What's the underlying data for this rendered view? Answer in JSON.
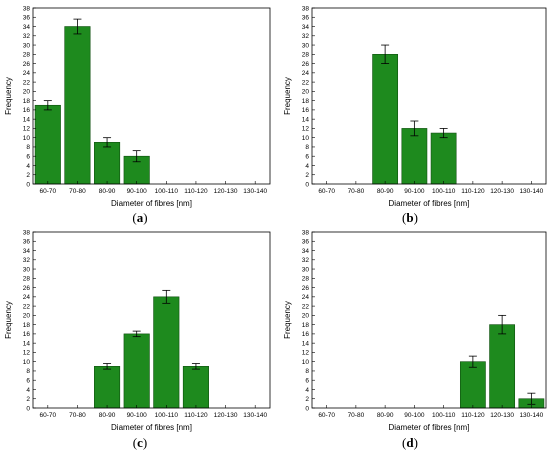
{
  "colors": {
    "bar_fill": "#1e8a1e",
    "bar_stroke": "#0f4f0f",
    "axis": "#000000",
    "error_bar": "#000000"
  },
  "chart_data": [
    {
      "type": "bar",
      "panel_label": "(a)",
      "categories": [
        "60-70",
        "70-80",
        "80-90",
        "90-100",
        "100-110",
        "110-120",
        "120-130",
        "130-140"
      ],
      "values": [
        17,
        34,
        9,
        6,
        0,
        0,
        0,
        0
      ],
      "errors": [
        1,
        1.6,
        1,
        1.2,
        0,
        0,
        0,
        0
      ],
      "xlabel": "Diameter of fibres [nm]",
      "ylabel": "Frequency",
      "ylim": [
        0,
        38
      ],
      "yticks": [
        0,
        2,
        4,
        6,
        8,
        10,
        12,
        14,
        16,
        18,
        20,
        22,
        24,
        26,
        28,
        30,
        32,
        34,
        36,
        38
      ],
      "grid": false
    },
    {
      "type": "bar",
      "panel_label": "(b)",
      "categories": [
        "60-70",
        "70-80",
        "80-90",
        "90-100",
        "100-110",
        "110-120",
        "120-130",
        "130-140"
      ],
      "values": [
        0,
        0,
        28,
        12,
        11,
        0,
        0,
        0
      ],
      "errors": [
        0,
        0,
        2,
        1.6,
        1,
        0,
        0,
        0
      ],
      "xlabel": "Diameter of fibres [nm]",
      "ylabel": "Frequency",
      "ylim": [
        0,
        38
      ],
      "yticks": [
        0,
        2,
        4,
        6,
        8,
        10,
        12,
        14,
        16,
        18,
        20,
        22,
        24,
        26,
        28,
        30,
        32,
        34,
        36,
        38
      ],
      "grid": false
    },
    {
      "type": "bar",
      "panel_label": "(c)",
      "categories": [
        "60-70",
        "70-80",
        "80-90",
        "90-100",
        "100-110",
        "110-120",
        "120-130",
        "130-140"
      ],
      "values": [
        0,
        0,
        9,
        16,
        24,
        9,
        0,
        0
      ],
      "errors": [
        0,
        0,
        0.6,
        0.6,
        1.4,
        0.6,
        0,
        0
      ],
      "xlabel": "Diameter of fibres [nm]",
      "ylabel": "Frequency",
      "ylim": [
        0,
        38
      ],
      "yticks": [
        0,
        2,
        4,
        6,
        8,
        10,
        12,
        14,
        16,
        18,
        20,
        22,
        24,
        26,
        28,
        30,
        32,
        34,
        36,
        38
      ],
      "grid": false
    },
    {
      "type": "bar",
      "panel_label": "(d)",
      "categories": [
        "60-70",
        "70-80",
        "80-90",
        "90-100",
        "100-110",
        "110-120",
        "120-130",
        "130-140"
      ],
      "values": [
        0,
        0,
        0,
        0,
        0,
        10,
        18,
        2
      ],
      "errors": [
        0,
        0,
        0,
        0,
        0,
        1.2,
        2,
        1.2
      ],
      "xlabel": "Diameter of fibres [nm]",
      "ylabel": "Frequency",
      "ylim": [
        0,
        38
      ],
      "yticks": [
        0,
        2,
        4,
        6,
        8,
        10,
        12,
        14,
        16,
        18,
        20,
        22,
        24,
        26,
        28,
        30,
        32,
        34,
        36,
        38
      ],
      "grid": false
    }
  ]
}
